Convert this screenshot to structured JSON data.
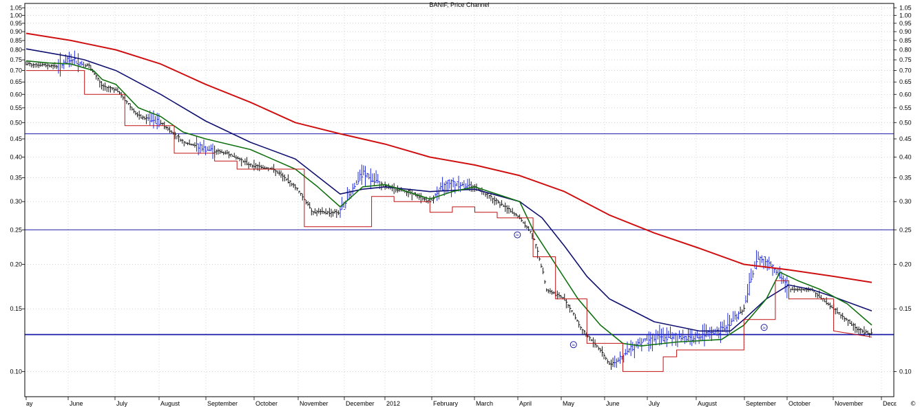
{
  "chart_data": {
    "type": "line",
    "title": "BANIF, Price Channel",
    "copyright_mark": "©",
    "y_scale": "log",
    "ylim": [
      0.085,
      1.08
    ],
    "y_ticks": [
      {
        "value": 1.05,
        "label": "1.05"
      },
      {
        "value": 1.0,
        "label": "1.00"
      },
      {
        "value": 0.95,
        "label": "0.95"
      },
      {
        "value": 0.9,
        "label": "0.90"
      },
      {
        "value": 0.85,
        "label": "0.85"
      },
      {
        "value": 0.8,
        "label": "0.80"
      },
      {
        "value": 0.75,
        "label": "0.75"
      },
      {
        "value": 0.7,
        "label": "0.70"
      },
      {
        "value": 0.65,
        "label": "0.65"
      },
      {
        "value": 0.6,
        "label": "0.60"
      },
      {
        "value": 0.55,
        "label": "0.55"
      },
      {
        "value": 0.5,
        "label": "0.50"
      },
      {
        "value": 0.45,
        "label": "0.45"
      },
      {
        "value": 0.4,
        "label": "0.40"
      },
      {
        "value": 0.35,
        "label": "0.35"
      },
      {
        "value": 0.3,
        "label": "0.30"
      },
      {
        "value": 0.25,
        "label": "0.25"
      },
      {
        "value": 0.2,
        "label": "0.20"
      },
      {
        "value": 0.15,
        "label": "0.15"
      },
      {
        "value": 0.1,
        "label": "0.10"
      }
    ],
    "x_ticks": [
      {
        "t": 0,
        "label": "ay"
      },
      {
        "t": 1,
        "label": "June"
      },
      {
        "t": 2,
        "label": "July"
      },
      {
        "t": 3,
        "label": "August"
      },
      {
        "t": 4,
        "label": "September"
      },
      {
        "t": 5,
        "label": "October"
      },
      {
        "t": 6,
        "label": "November"
      },
      {
        "t": 7,
        "label": "December"
      },
      {
        "t": 8,
        "label": "2012"
      },
      {
        "t": 9,
        "label": "February"
      },
      {
        "t": 10,
        "label": "March"
      },
      {
        "t": 11,
        "label": "April"
      },
      {
        "t": 12,
        "label": "May"
      },
      {
        "t": 13,
        "label": "June"
      },
      {
        "t": 14,
        "label": "July"
      },
      {
        "t": 15,
        "label": "August"
      },
      {
        "t": 16,
        "label": "September"
      },
      {
        "t": 17,
        "label": "October"
      },
      {
        "t": 18,
        "label": "November"
      },
      {
        "t": 19,
        "label": "Decε"
      }
    ],
    "x_range": [
      0,
      19.5
    ],
    "horizontal_levels": [
      0.465,
      0.25,
      0.127
    ],
    "series": [
      {
        "color": "#d01010",
        "width": 2,
        "points": [
          [
            0,
            0.89
          ],
          [
            1,
            0.85
          ],
          [
            2,
            0.8
          ],
          [
            3,
            0.73
          ],
          [
            4,
            0.64
          ],
          [
            5,
            0.57
          ],
          [
            6,
            0.5
          ],
          [
            7,
            0.465
          ],
          [
            8,
            0.435
          ],
          [
            9,
            0.4
          ],
          [
            10,
            0.38
          ],
          [
            11,
            0.355
          ],
          [
            12,
            0.32
          ],
          [
            13,
            0.275
          ],
          [
            14,
            0.245
          ],
          [
            15,
            0.222
          ],
          [
            16,
            0.2
          ],
          [
            17,
            0.193
          ],
          [
            18,
            0.185
          ],
          [
            18.85,
            0.178
          ]
        ]
      },
      {
        "color": "#101070",
        "width": 1.6,
        "points": [
          [
            0,
            0.805
          ],
          [
            1,
            0.765
          ],
          [
            1.3,
            0.75
          ],
          [
            2,
            0.7
          ],
          [
            3,
            0.6
          ],
          [
            4,
            0.505
          ],
          [
            5,
            0.44
          ],
          [
            6,
            0.395
          ],
          [
            7,
            0.315
          ],
          [
            7.5,
            0.325
          ],
          [
            8,
            0.33
          ],
          [
            9,
            0.32
          ],
          [
            10,
            0.325
          ],
          [
            11,
            0.3
          ],
          [
            11.5,
            0.27
          ],
          [
            12,
            0.225
          ],
          [
            12.5,
            0.185
          ],
          [
            13,
            0.16
          ],
          [
            14,
            0.138
          ],
          [
            15,
            0.13
          ],
          [
            15.7,
            0.13
          ],
          [
            16,
            0.14
          ],
          [
            16.5,
            0.16
          ],
          [
            17,
            0.175
          ],
          [
            17.5,
            0.17
          ],
          [
            18,
            0.162
          ],
          [
            18.85,
            0.148
          ]
        ]
      },
      {
        "color": "#107010",
        "width": 1.6,
        "points": [
          [
            0,
            0.745
          ],
          [
            0.5,
            0.735
          ],
          [
            1,
            0.73
          ],
          [
            1.5,
            0.7
          ],
          [
            1.7,
            0.66
          ],
          [
            2,
            0.64
          ],
          [
            2.5,
            0.55
          ],
          [
            3,
            0.52
          ],
          [
            3.5,
            0.47
          ],
          [
            4,
            0.45
          ],
          [
            5,
            0.42
          ],
          [
            6,
            0.37
          ],
          [
            6.5,
            0.33
          ],
          [
            7,
            0.29
          ],
          [
            7.5,
            0.33
          ],
          [
            8,
            0.335
          ],
          [
            9,
            0.305
          ],
          [
            9.5,
            0.32
          ],
          [
            10,
            0.33
          ],
          [
            11,
            0.3
          ],
          [
            11.3,
            0.25
          ],
          [
            11.8,
            0.2
          ],
          [
            12.3,
            0.16
          ],
          [
            12.8,
            0.135
          ],
          [
            13.3,
            0.12
          ],
          [
            13.7,
            0.118
          ],
          [
            14.5,
            0.121
          ],
          [
            15.5,
            0.123
          ],
          [
            16,
            0.135
          ],
          [
            16.5,
            0.16
          ],
          [
            16.8,
            0.19
          ],
          [
            17.2,
            0.18
          ],
          [
            17.7,
            0.17
          ],
          [
            18.3,
            0.155
          ],
          [
            18.85,
            0.135
          ]
        ]
      },
      {
        "color": "#c01010",
        "width": 1,
        "points": [
          [
            0,
            0.7
          ],
          [
            1.3,
            0.7
          ],
          [
            1.3,
            0.6
          ],
          [
            2.2,
            0.6
          ],
          [
            2.2,
            0.49
          ],
          [
            3.3,
            0.49
          ],
          [
            3.3,
            0.41
          ],
          [
            4.2,
            0.41
          ],
          [
            4.2,
            0.39
          ],
          [
            4.7,
            0.39
          ],
          [
            4.7,
            0.37
          ],
          [
            6.2,
            0.37
          ],
          [
            6.2,
            0.255
          ],
          [
            7.7,
            0.255
          ],
          [
            7.7,
            0.31
          ],
          [
            8.2,
            0.31
          ],
          [
            8.2,
            0.3
          ],
          [
            9,
            0.3
          ],
          [
            9,
            0.28
          ],
          [
            9.5,
            0.28
          ],
          [
            9.5,
            0.29
          ],
          [
            10,
            0.29
          ],
          [
            10,
            0.28
          ],
          [
            10.5,
            0.28
          ],
          [
            10.5,
            0.27
          ],
          [
            11.3,
            0.27
          ],
          [
            11.3,
            0.21
          ],
          [
            11.8,
            0.21
          ],
          [
            11.8,
            0.16
          ],
          [
            12.5,
            0.16
          ],
          [
            12.5,
            0.12
          ],
          [
            13.3,
            0.12
          ],
          [
            13.3,
            0.1
          ],
          [
            14.2,
            0.1
          ],
          [
            14.2,
            0.11
          ],
          [
            14.5,
            0.11
          ],
          [
            14.5,
            0.115
          ],
          [
            16,
            0.115
          ],
          [
            16,
            0.14
          ],
          [
            16.7,
            0.14
          ],
          [
            16.7,
            0.18
          ],
          [
            17,
            0.18
          ],
          [
            17,
            0.16
          ],
          [
            18,
            0.16
          ],
          [
            18,
            0.13
          ],
          [
            18.85,
            0.125
          ]
        ]
      }
    ],
    "price_path": [
      [
        0,
        0.73
      ],
      [
        0.7,
        0.72
      ],
      [
        1,
        0.75
      ],
      [
        1.4,
        0.72
      ],
      [
        1.7,
        0.63
      ],
      [
        2,
        0.62
      ],
      [
        2.5,
        0.52
      ],
      [
        3,
        0.5
      ],
      [
        3.5,
        0.44
      ],
      [
        3.8,
        0.43
      ],
      [
        4,
        0.42
      ],
      [
        4.5,
        0.41
      ],
      [
        5,
        0.38
      ],
      [
        5.5,
        0.37
      ],
      [
        6,
        0.33
      ],
      [
        6.4,
        0.28
      ],
      [
        7,
        0.28
      ],
      [
        7.3,
        0.33
      ],
      [
        7.5,
        0.36
      ],
      [
        8,
        0.33
      ],
      [
        8.5,
        0.32
      ],
      [
        9,
        0.3
      ],
      [
        9.4,
        0.34
      ],
      [
        10,
        0.33
      ],
      [
        10.5,
        0.3
      ],
      [
        11,
        0.27
      ],
      [
        11.3,
        0.24
      ],
      [
        11.6,
        0.17
      ],
      [
        12,
        0.16
      ],
      [
        12.4,
        0.13
      ],
      [
        12.8,
        0.115
      ],
      [
        13,
        0.105
      ],
      [
        13.3,
        0.11
      ],
      [
        13.6,
        0.12
      ],
      [
        14,
        0.125
      ],
      [
        15,
        0.125
      ],
      [
        15.5,
        0.13
      ],
      [
        16,
        0.15
      ],
      [
        16.3,
        0.21
      ],
      [
        16.6,
        0.2
      ],
      [
        17,
        0.17
      ],
      [
        17.5,
        0.17
      ],
      [
        18,
        0.15
      ],
      [
        18.5,
        0.132
      ],
      [
        18.85,
        0.127
      ]
    ],
    "blue_segments": [
      [
        0.7,
        1.3
      ],
      [
        2.7,
        3.0
      ],
      [
        3.8,
        4.2
      ],
      [
        7.0,
        7.9
      ],
      [
        9.1,
        9.9
      ],
      [
        13.1,
        15.9
      ],
      [
        16.0,
        17.0
      ]
    ],
    "annotations": [
      {
        "t": 10.95,
        "value": 0.242,
        "label": "≈"
      },
      {
        "t": 12.2,
        "value": 0.119,
        "label": "≈"
      },
      {
        "t": 16.45,
        "value": 0.133,
        "label": "≈"
      }
    ]
  }
}
